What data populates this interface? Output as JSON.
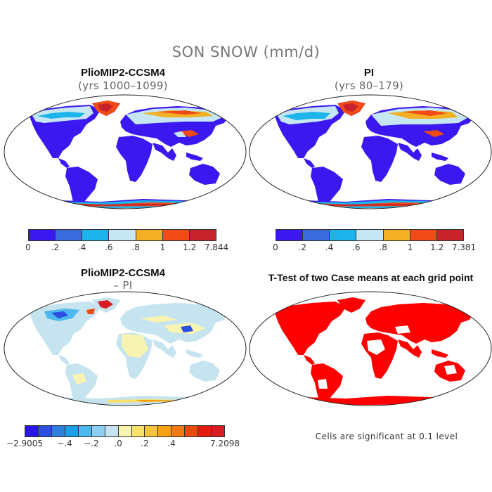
{
  "title": "SON SNOW (mm/d)",
  "panels": [
    {
      "title": "PlioMIP2-CCSM4",
      "subtitle": "(yrs 1000–1099)"
    },
    {
      "title": "PI",
      "subtitle": "(yrs 80–179)"
    },
    {
      "title": "PlioMIP2-CCSM4",
      "subtitle": "– PI"
    },
    {
      "title": "T-Test of two Case means at each grid point",
      "subtitle": ""
    }
  ],
  "colorbars": {
    "snow_a": {
      "colors": [
        "#3b18f0",
        "#3a6bdc",
        "#1cb4ea",
        "#c5e6f2",
        "#f4b024",
        "#f04a16",
        "#c8232a"
      ],
      "labels": [
        "0",
        ".2",
        ".4",
        ".6",
        ".8",
        "1",
        "1.2",
        "7.844"
      ]
    },
    "snow_b": {
      "colors": [
        "#3b18f0",
        "#3a6bdc",
        "#1cb4ea",
        "#c5e6f2",
        "#f4b024",
        "#f04a16",
        "#c8232a"
      ],
      "labels": [
        "0",
        ".2",
        ".4",
        ".6",
        ".8",
        "1",
        "1.2",
        "7.381"
      ]
    },
    "diff": {
      "colors": [
        "#2a17e6",
        "#2d4fe0",
        "#2e7fdc",
        "#1a9fe6",
        "#4cb8ee",
        "#8ccff0",
        "#c6e3f0",
        "#f7f4b2",
        "#f8e16a",
        "#f8c43a",
        "#f6a012",
        "#f27a10",
        "#ec4a0c",
        "#e41a0e",
        "#d81c22"
      ],
      "labels": [
        "−2.9005",
        "−.4",
        "−.2",
        ".0",
        ".2",
        ".4",
        "7.2098"
      ]
    }
  },
  "ttest_note": "Cells are significant at 0.1 level",
  "colors": {
    "ocean": "#ffffff",
    "land_low": "#3b18f0",
    "significant": "#ff0000",
    "diff_land": "#c6e3f0"
  }
}
